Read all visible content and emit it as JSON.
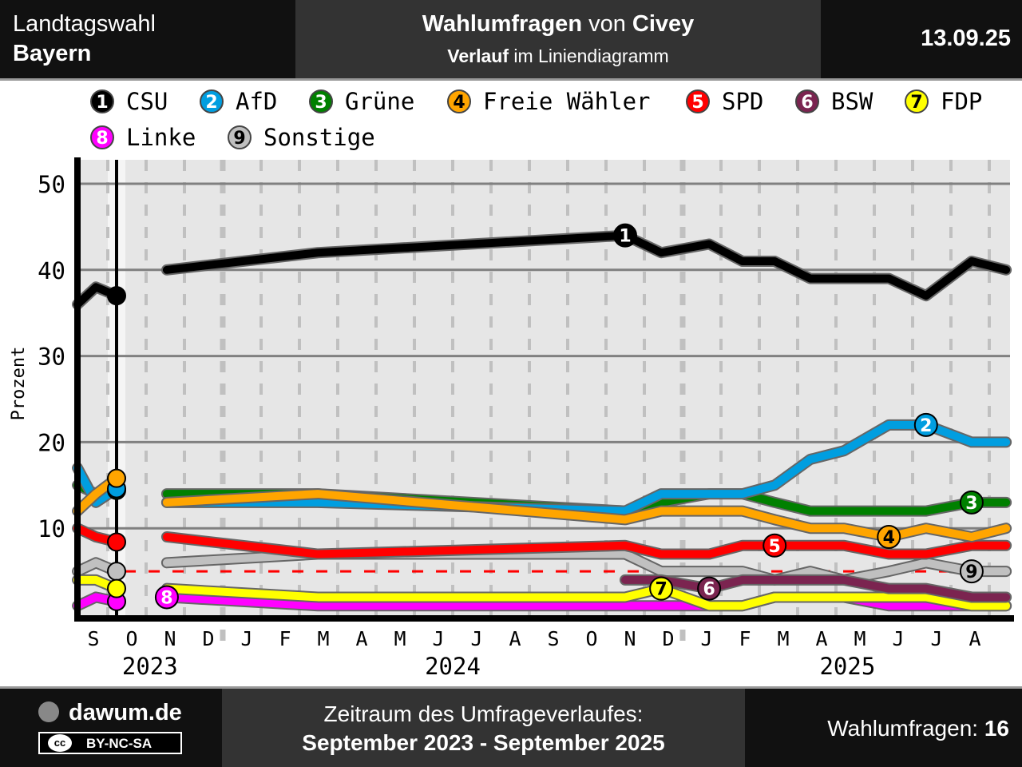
{
  "header": {
    "left_line1": "Landtagswahl",
    "left_line2": "Bayern",
    "title_bold1": "Wahlumfragen",
    "title_mid": " von ",
    "title_bold2": "Civey",
    "subtitle_bold": "Verlauf",
    "subtitle_rest": " im Liniendiagramm",
    "date": "13.09.25"
  },
  "footer": {
    "site": "dawum.de",
    "license": "BY-NC-SA",
    "license_icon": "cc",
    "period_label": "Zeitraum des Umfrageverlaufes:",
    "period_value": "September 2023 - September 2025",
    "count_label": "Wahlumfragen: ",
    "count_value": "16"
  },
  "chart_data": {
    "type": "line",
    "ylabel": "Prozent",
    "xlabel": "",
    "ylim": [
      0,
      52
    ],
    "yticks": [
      10,
      20,
      30,
      40,
      50
    ],
    "x_unit": "months since 1 Sep 2023",
    "month_labels": [
      "S",
      "O",
      "N",
      "D",
      "J",
      "F",
      "M",
      "A",
      "M",
      "J",
      "J",
      "A",
      "S",
      "O",
      "N",
      "D",
      "J",
      "F",
      "M",
      "A",
      "M",
      "J",
      "J",
      "A"
    ],
    "year_labels": [
      {
        "label": "2023",
        "x": 2.1
      },
      {
        "label": "2024",
        "x": 10.0
      },
      {
        "label": "2025",
        "x": 20.3
      }
    ],
    "election_x": 1.23,
    "threshold": 5,
    "grid": true,
    "legend_placement": "top",
    "x": [
      0.21,
      0.69,
      1.23,
      2.54,
      6.48,
      14.5,
      15.44,
      16.69,
      17.56,
      18.4,
      19.33,
      20.21,
      21.38,
      22.35,
      23.54,
      24.44
    ],
    "series": [
      {
        "num": "9",
        "name": "Sonstige",
        "color": "#c0c0c0",
        "text": "#000",
        "label_at": 14,
        "values": [
          5,
          6,
          5,
          6,
          7,
          7,
          5,
          5,
          5,
          4,
          5,
          4,
          5,
          6,
          5,
          5
        ]
      },
      {
        "num": "8",
        "name": "Linke",
        "color": "#ff00ff",
        "text": "#fff",
        "label_at": 3,
        "values": [
          1,
          2,
          1.5,
          2,
          1,
          1,
          1,
          1,
          1,
          2,
          2,
          2,
          1,
          1,
          1,
          1
        ]
      },
      {
        "num": "7",
        "name": "FDP",
        "color": "#ffff00",
        "text": "#000",
        "label_at": 6,
        "values": [
          4,
          4,
          3,
          3,
          2,
          2,
          3,
          1,
          1,
          2,
          2,
          2,
          2,
          2,
          1,
          1
        ]
      },
      {
        "num": "6",
        "name": "BSW",
        "color": "#7b2450",
        "text": "#fff",
        "label_at": 7,
        "values": [
          null,
          null,
          null,
          null,
          null,
          4,
          4,
          3,
          4,
          4,
          4,
          4,
          3,
          3,
          2,
          2
        ]
      },
      {
        "num": "5",
        "name": "SPD",
        "color": "#ff0000",
        "text": "#fff",
        "label_at": 9,
        "values": [
          10,
          9,
          8.4,
          9,
          7,
          8,
          7,
          7,
          8,
          8,
          8,
          8,
          7,
          7,
          8,
          8
        ]
      },
      {
        "num": "3",
        "name": "Grüne",
        "color": "#008000",
        "text": "#fff",
        "label_at": 14,
        "values": [
          15,
          14,
          14.4,
          14,
          14,
          12,
          13,
          14,
          14,
          13,
          12,
          12,
          12,
          12,
          13,
          13
        ]
      },
      {
        "num": "2",
        "name": "AfD",
        "color": "#009ee0",
        "text": "#fff",
        "label_at": 13,
        "values": [
          17,
          13,
          14.6,
          13,
          13,
          12,
          14,
          14,
          14,
          15,
          18,
          19,
          22,
          22,
          20,
          20
        ]
      },
      {
        "num": "4",
        "name": "Freie Wähler",
        "color": "#ffa500",
        "text": "#000",
        "label_at": 12,
        "values": [
          12,
          14,
          15.8,
          13,
          14,
          11,
          12,
          12,
          12,
          11,
          10,
          10,
          9,
          10,
          9,
          10
        ]
      },
      {
        "num": "1",
        "name": "CSU",
        "color": "#000000",
        "text": "#fff",
        "label_at": 5,
        "values": [
          36,
          38,
          37,
          40,
          42,
          44,
          42,
          43,
          41,
          41,
          39,
          39,
          39,
          37,
          41,
          40
        ]
      }
    ],
    "legend_order": [
      "1",
      "2",
      "3",
      "4",
      "5",
      "6",
      "7",
      "8",
      "9"
    ]
  }
}
